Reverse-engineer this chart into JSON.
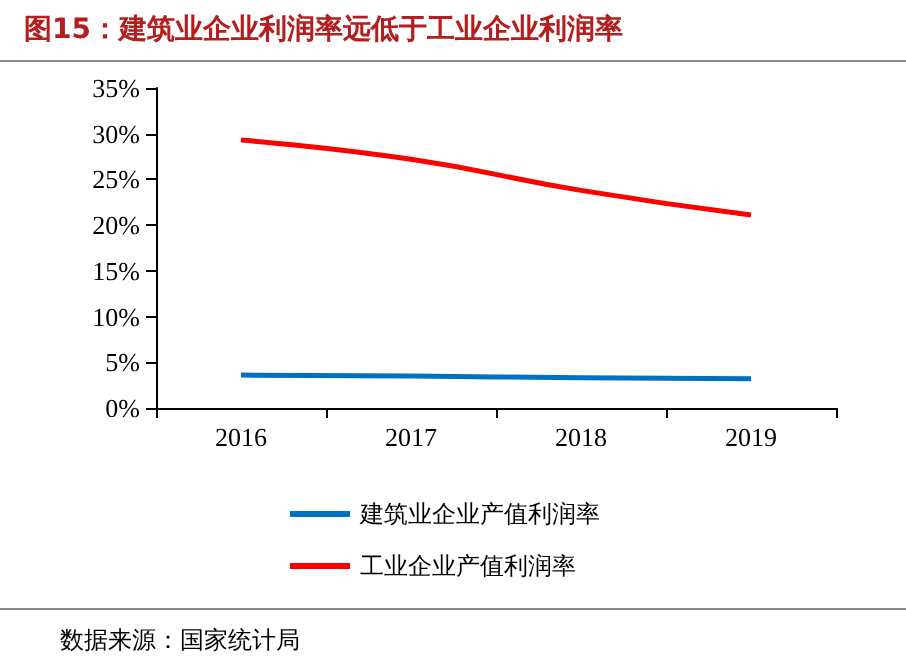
{
  "chart_data": {
    "type": "line",
    "title": "图15：建筑业企业利润率远低于工业企业利润率",
    "categories": [
      "2016",
      "2017",
      "2018",
      "2019"
    ],
    "series": [
      {
        "name": "建筑业企业产值利润率",
        "color": "#0070c0",
        "values": [
          3.6,
          3.5,
          3.3,
          3.2
        ]
      },
      {
        "name": "工业企业产值利润率",
        "color": "#ff0000",
        "values": [
          29.3,
          27.2,
          23.8,
          21.1
        ]
      }
    ],
    "ylim": [
      0,
      35
    ],
    "yticks": [
      {
        "value": 0,
        "label": "0%"
      },
      {
        "value": 5,
        "label": "5%"
      },
      {
        "value": 10,
        "label": "10%"
      },
      {
        "value": 15,
        "label": "15%"
      },
      {
        "value": 20,
        "label": "20%"
      },
      {
        "value": 25,
        "label": "25%"
      },
      {
        "value": 30,
        "label": "30%"
      },
      {
        "value": 35,
        "label": "35%"
      }
    ],
    "legend": "bottom",
    "grid": false,
    "marker": "none",
    "line_style": "solid",
    "annotations": [
      "数据来源：国家统计局"
    ]
  }
}
